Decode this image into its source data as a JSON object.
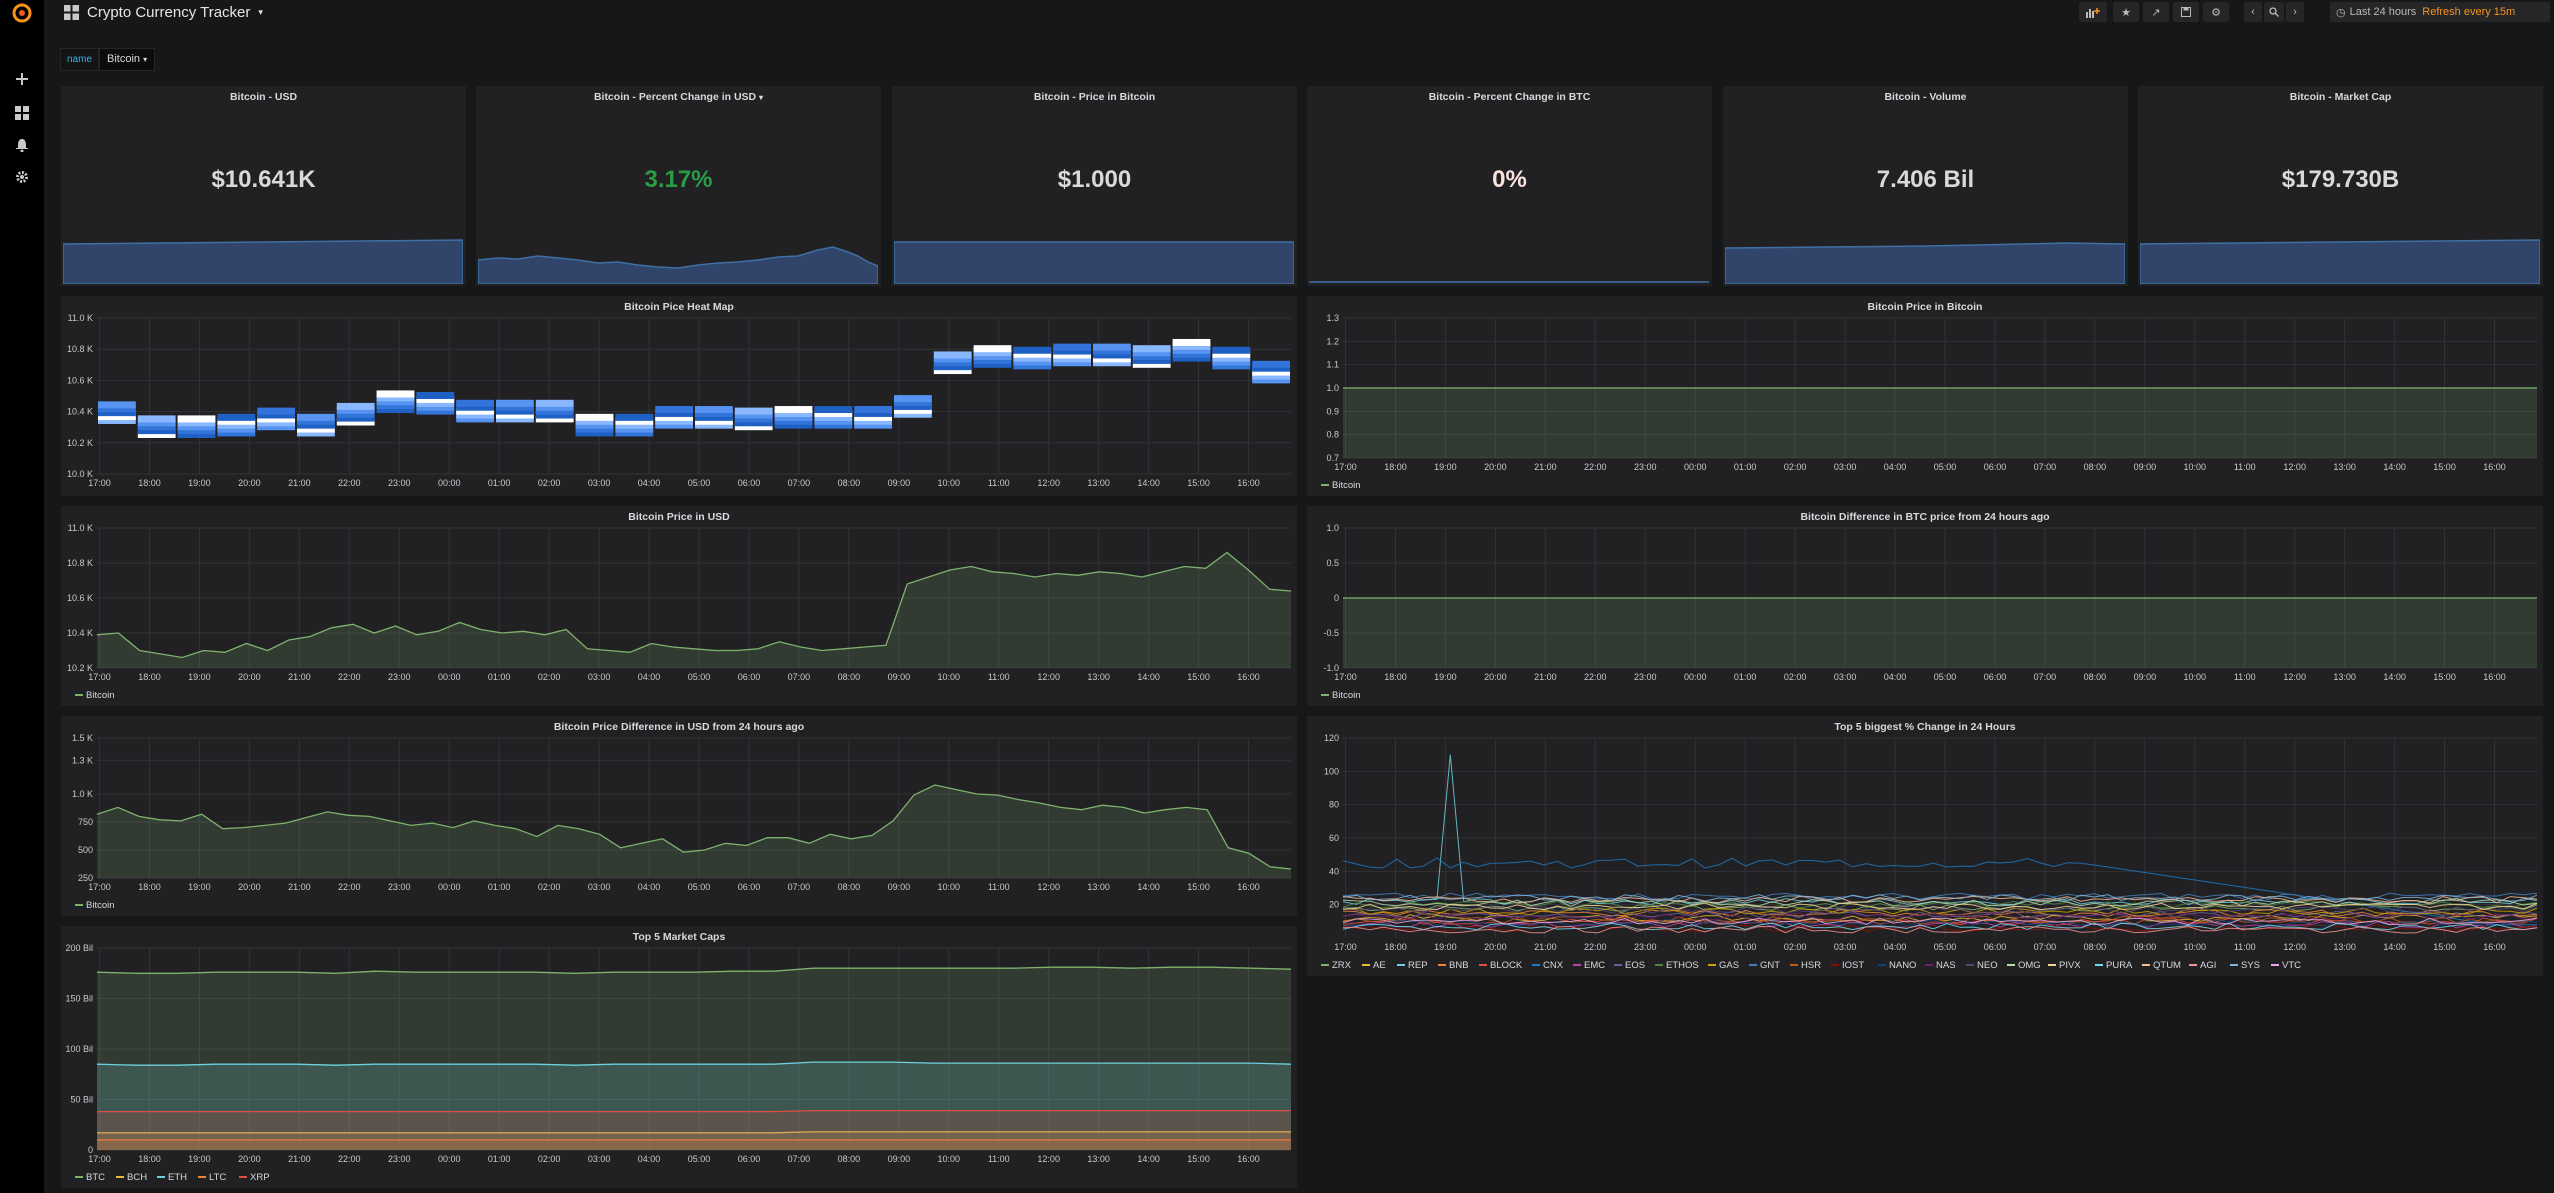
{
  "app": {
    "title": "Crypto Currency Tracker"
  },
  "toolbar": {
    "time_range": "Last 24 hours",
    "refresh": "Refresh every 15m"
  },
  "variables": [
    {
      "label": "name",
      "value": "Bitcoin"
    }
  ],
  "sidebar": {
    "items": [
      "logo-icon",
      "plus-icon",
      "dashboards-icon",
      "bell-icon",
      "gear-icon"
    ]
  },
  "stats": [
    {
      "title": "Bitcoin - USD",
      "value": "$10.641K",
      "color": "#d8d9da"
    },
    {
      "title": "Bitcoin - Percent Change in USD",
      "value": "3.17%",
      "color": "#299c46"
    },
    {
      "title": "Bitcoin - Price in Bitcoin",
      "value": "$1.000",
      "color": "#d8d9da"
    },
    {
      "title": "Bitcoin - Percent Change in BTC",
      "value": "0%",
      "color": "#fce2de"
    },
    {
      "title": "Bitcoin - Volume",
      "value": "7.406 Bil",
      "color": "#d8d9da"
    },
    {
      "title": "Bitcoin - Market Cap",
      "value": "$179.730B",
      "color": "#d8d9da"
    }
  ],
  "time_ticks": [
    "17:00",
    "18:00",
    "19:00",
    "20:00",
    "21:00",
    "22:00",
    "23:00",
    "00:00",
    "01:00",
    "02:00",
    "03:00",
    "04:00",
    "05:00",
    "06:00",
    "07:00",
    "08:00",
    "09:00",
    "10:00",
    "11:00",
    "12:00",
    "13:00",
    "14:00",
    "15:00",
    "16:00"
  ],
  "chart_data": [
    {
      "id": "heatmap",
      "type": "heatmap",
      "title": "Bitcoin Pice Heat Map",
      "y_ticks": [
        "11.0 K",
        "10.8 K",
        "10.6 K",
        "10.4 K",
        "10.2 K",
        "10.0 K"
      ],
      "ylim": [
        10000,
        11000
      ],
      "columns": [
        10390,
        10300,
        10300,
        10310,
        10350,
        10310,
        10380,
        10460,
        10450,
        10400,
        10400,
        10400,
        10310,
        10310,
        10360,
        10360,
        10350,
        10360,
        10360,
        10360,
        10430,
        10710,
        10750,
        10740,
        10760,
        10760,
        10750,
        10790,
        10740,
        10650
      ],
      "legend": []
    },
    {
      "id": "btc-in-btc",
      "type": "area",
      "title": "Bitcoin Price in Bitcoin",
      "y_ticks": [
        "1.3",
        "1.2",
        "1.1",
        "1.0",
        "0.9",
        "0.8",
        "0.7"
      ],
      "ylim": [
        0.7,
        1.3
      ],
      "series": [
        {
          "name": "Bitcoin",
          "color": "#7eb26d",
          "values": [
            1,
            1
          ]
        }
      ],
      "legend": [
        "Bitcoin"
      ]
    },
    {
      "id": "btc-usd",
      "type": "area",
      "title": "Bitcoin Price in USD",
      "y_ticks": [
        "11.0 K",
        "10.8 K",
        "10.6 K",
        "10.4 K",
        "10.2 K"
      ],
      "ylim": [
        10200,
        11000
      ],
      "series": [
        {
          "name": "Bitcoin",
          "color": "#7eb26d",
          "values": [
            10390,
            10400,
            10300,
            10280,
            10260,
            10300,
            10290,
            10340,
            10300,
            10360,
            10380,
            10430,
            10450,
            10400,
            10440,
            10390,
            10410,
            10460,
            10420,
            10400,
            10410,
            10390,
            10420,
            10310,
            10300,
            10290,
            10340,
            10320,
            10310,
            10300,
            10300,
            10310,
            10350,
            10320,
            10300,
            10310,
            10320,
            10330,
            10680,
            10720,
            10760,
            10780,
            10750,
            10740,
            10720,
            10740,
            10730,
            10750,
            10740,
            10720,
            10750,
            10780,
            10770,
            10860,
            10760,
            10650,
            10640
          ]
        }
      ],
      "legend": [
        "Bitcoin"
      ]
    },
    {
      "id": "btc-diff-btc",
      "type": "area",
      "title": "Bitcoin Difference in BTC price from 24 hours ago",
      "y_ticks": [
        "1.0",
        "0.5",
        "0",
        "-0.5",
        "-1.0"
      ],
      "ylim": [
        -1,
        1
      ],
      "series": [
        {
          "name": "Bitcoin",
          "color": "#7eb26d",
          "values": [
            0,
            0
          ]
        }
      ],
      "legend": [
        "Bitcoin"
      ]
    },
    {
      "id": "btc-diff-usd",
      "type": "area",
      "title": "Bitcoin Price Difference in USD from 24 hours ago",
      "y_ticks": [
        "1.5 K",
        "1.3 K",
        "1.0 K",
        "750",
        "500",
        "250"
      ],
      "ylim": [
        250,
        1500
      ],
      "series": [
        {
          "name": "Bitcoin",
          "color": "#7eb26d",
          "values": [
            820,
            880,
            800,
            770,
            760,
            820,
            690,
            700,
            720,
            740,
            790,
            840,
            810,
            800,
            760,
            720,
            740,
            700,
            760,
            720,
            690,
            620,
            720,
            690,
            640,
            520,
            560,
            600,
            480,
            500,
            560,
            540,
            610,
            610,
            560,
            640,
            600,
            630,
            760,
            990,
            1080,
            1040,
            1000,
            990,
            950,
            920,
            880,
            860,
            900,
            880,
            830,
            860,
            880,
            860,
            520,
            470,
            350,
            330
          ]
        }
      ],
      "legend": [
        "Bitcoin"
      ]
    },
    {
      "id": "top5-change",
      "type": "line",
      "title": "Top 5 biggest % Change in 24 Hours",
      "y_ticks": [
        "120",
        "100",
        "80",
        "60",
        "40",
        "20"
      ],
      "ylim": [
        0,
        120
      ],
      "series": [
        {
          "name": "ZRX",
          "color": "#7eb26d"
        },
        {
          "name": "AE",
          "color": "#eab839"
        },
        {
          "name": "REP",
          "color": "#6ed0e0"
        },
        {
          "name": "BNB",
          "color": "#ef843c"
        },
        {
          "name": "BLOCK",
          "color": "#e24d42"
        },
        {
          "name": "CNX",
          "color": "#1f78c1"
        },
        {
          "name": "EMC",
          "color": "#ba43a9"
        },
        {
          "name": "EOS",
          "color": "#705da0"
        },
        {
          "name": "ETHOS",
          "color": "#508642"
        },
        {
          "name": "GAS",
          "color": "#cca300"
        },
        {
          "name": "GNT",
          "color": "#447ebc"
        },
        {
          "name": "HSR",
          "color": "#c15c17"
        },
        {
          "name": "IOST",
          "color": "#890f02"
        },
        {
          "name": "NANO",
          "color": "#0a437c"
        },
        {
          "name": "NAS",
          "color": "#6d1f62"
        },
        {
          "name": "NEO",
          "color": "#584477"
        },
        {
          "name": "OMG",
          "color": "#b7dbab"
        },
        {
          "name": "PIVX",
          "color": "#f4d598"
        },
        {
          "name": "PURA",
          "color": "#70dbed"
        },
        {
          "name": "QTUM",
          "color": "#f9ba8f"
        },
        {
          "name": "AGI",
          "color": "#f29191"
        },
        {
          "name": "SYS",
          "color": "#82b5d8"
        },
        {
          "name": "VTC",
          "color": "#e5a8e2"
        }
      ],
      "legend": [
        "ZRX",
        "AE",
        "REP",
        "BNB",
        "BLOCK",
        "CNX",
        "EMC",
        "EOS",
        "ETHOS",
        "GAS",
        "GNT",
        "HSR",
        "IOST",
        "NANO",
        "NAS",
        "NEO",
        "OMG",
        "PIVX",
        "PURA",
        "QTUM",
        "AGI",
        "SYS",
        "VTC"
      ]
    },
    {
      "id": "top5-mcap",
      "type": "area",
      "title": "Top 5 Market Caps",
      "y_ticks": [
        "200 Bil",
        "150 Bil",
        "100 Bil",
        "50 Bil",
        "0"
      ],
      "ylim": [
        0,
        200
      ],
      "series": [
        {
          "name": "BTC",
          "color": "#7eb26d",
          "values": [
            176,
            175,
            175,
            176,
            176,
            176,
            175,
            177,
            176,
            176,
            176,
            176,
            175,
            176,
            176,
            176,
            177,
            177,
            180,
            180,
            180,
            180,
            180,
            180,
            181,
            181,
            180,
            181,
            181,
            180,
            179
          ]
        },
        {
          "name": "BCH",
          "color": "#eab839",
          "values": [
            17,
            17,
            17,
            17,
            17,
            17,
            17,
            17,
            17,
            17,
            17,
            17,
            17,
            17,
            17,
            17,
            17,
            17,
            18,
            18,
            18,
            18,
            18,
            18,
            18,
            18,
            18,
            18,
            18,
            18,
            18
          ]
        },
        {
          "name": "ETH",
          "color": "#6ed0e0",
          "values": [
            85,
            84,
            84,
            85,
            85,
            85,
            84,
            85,
            85,
            85,
            85,
            85,
            84,
            85,
            85,
            85,
            85,
            85,
            87,
            87,
            87,
            86,
            86,
            86,
            86,
            86,
            86,
            86,
            86,
            86,
            85
          ]
        },
        {
          "name": "LTC",
          "color": "#ef843c",
          "values": [
            10,
            10,
            10,
            10,
            10,
            10,
            10,
            10,
            10,
            10,
            10,
            10,
            10,
            10,
            10,
            10,
            10,
            10,
            10,
            10,
            10,
            10,
            10,
            10,
            10,
            10,
            10,
            10,
            10,
            10,
            10
          ]
        },
        {
          "name": "XRP",
          "color": "#e24d42",
          "values": [
            38,
            38,
            38,
            38,
            38,
            38,
            38,
            38,
            38,
            38,
            38,
            38,
            38,
            38,
            38,
            38,
            38,
            38,
            39,
            39,
            39,
            39,
            39,
            39,
            39,
            39,
            39,
            39,
            39,
            39,
            39
          ]
        }
      ],
      "legend": [
        "BTC",
        "BCH",
        "ETH",
        "LTC",
        "XRP"
      ]
    }
  ]
}
